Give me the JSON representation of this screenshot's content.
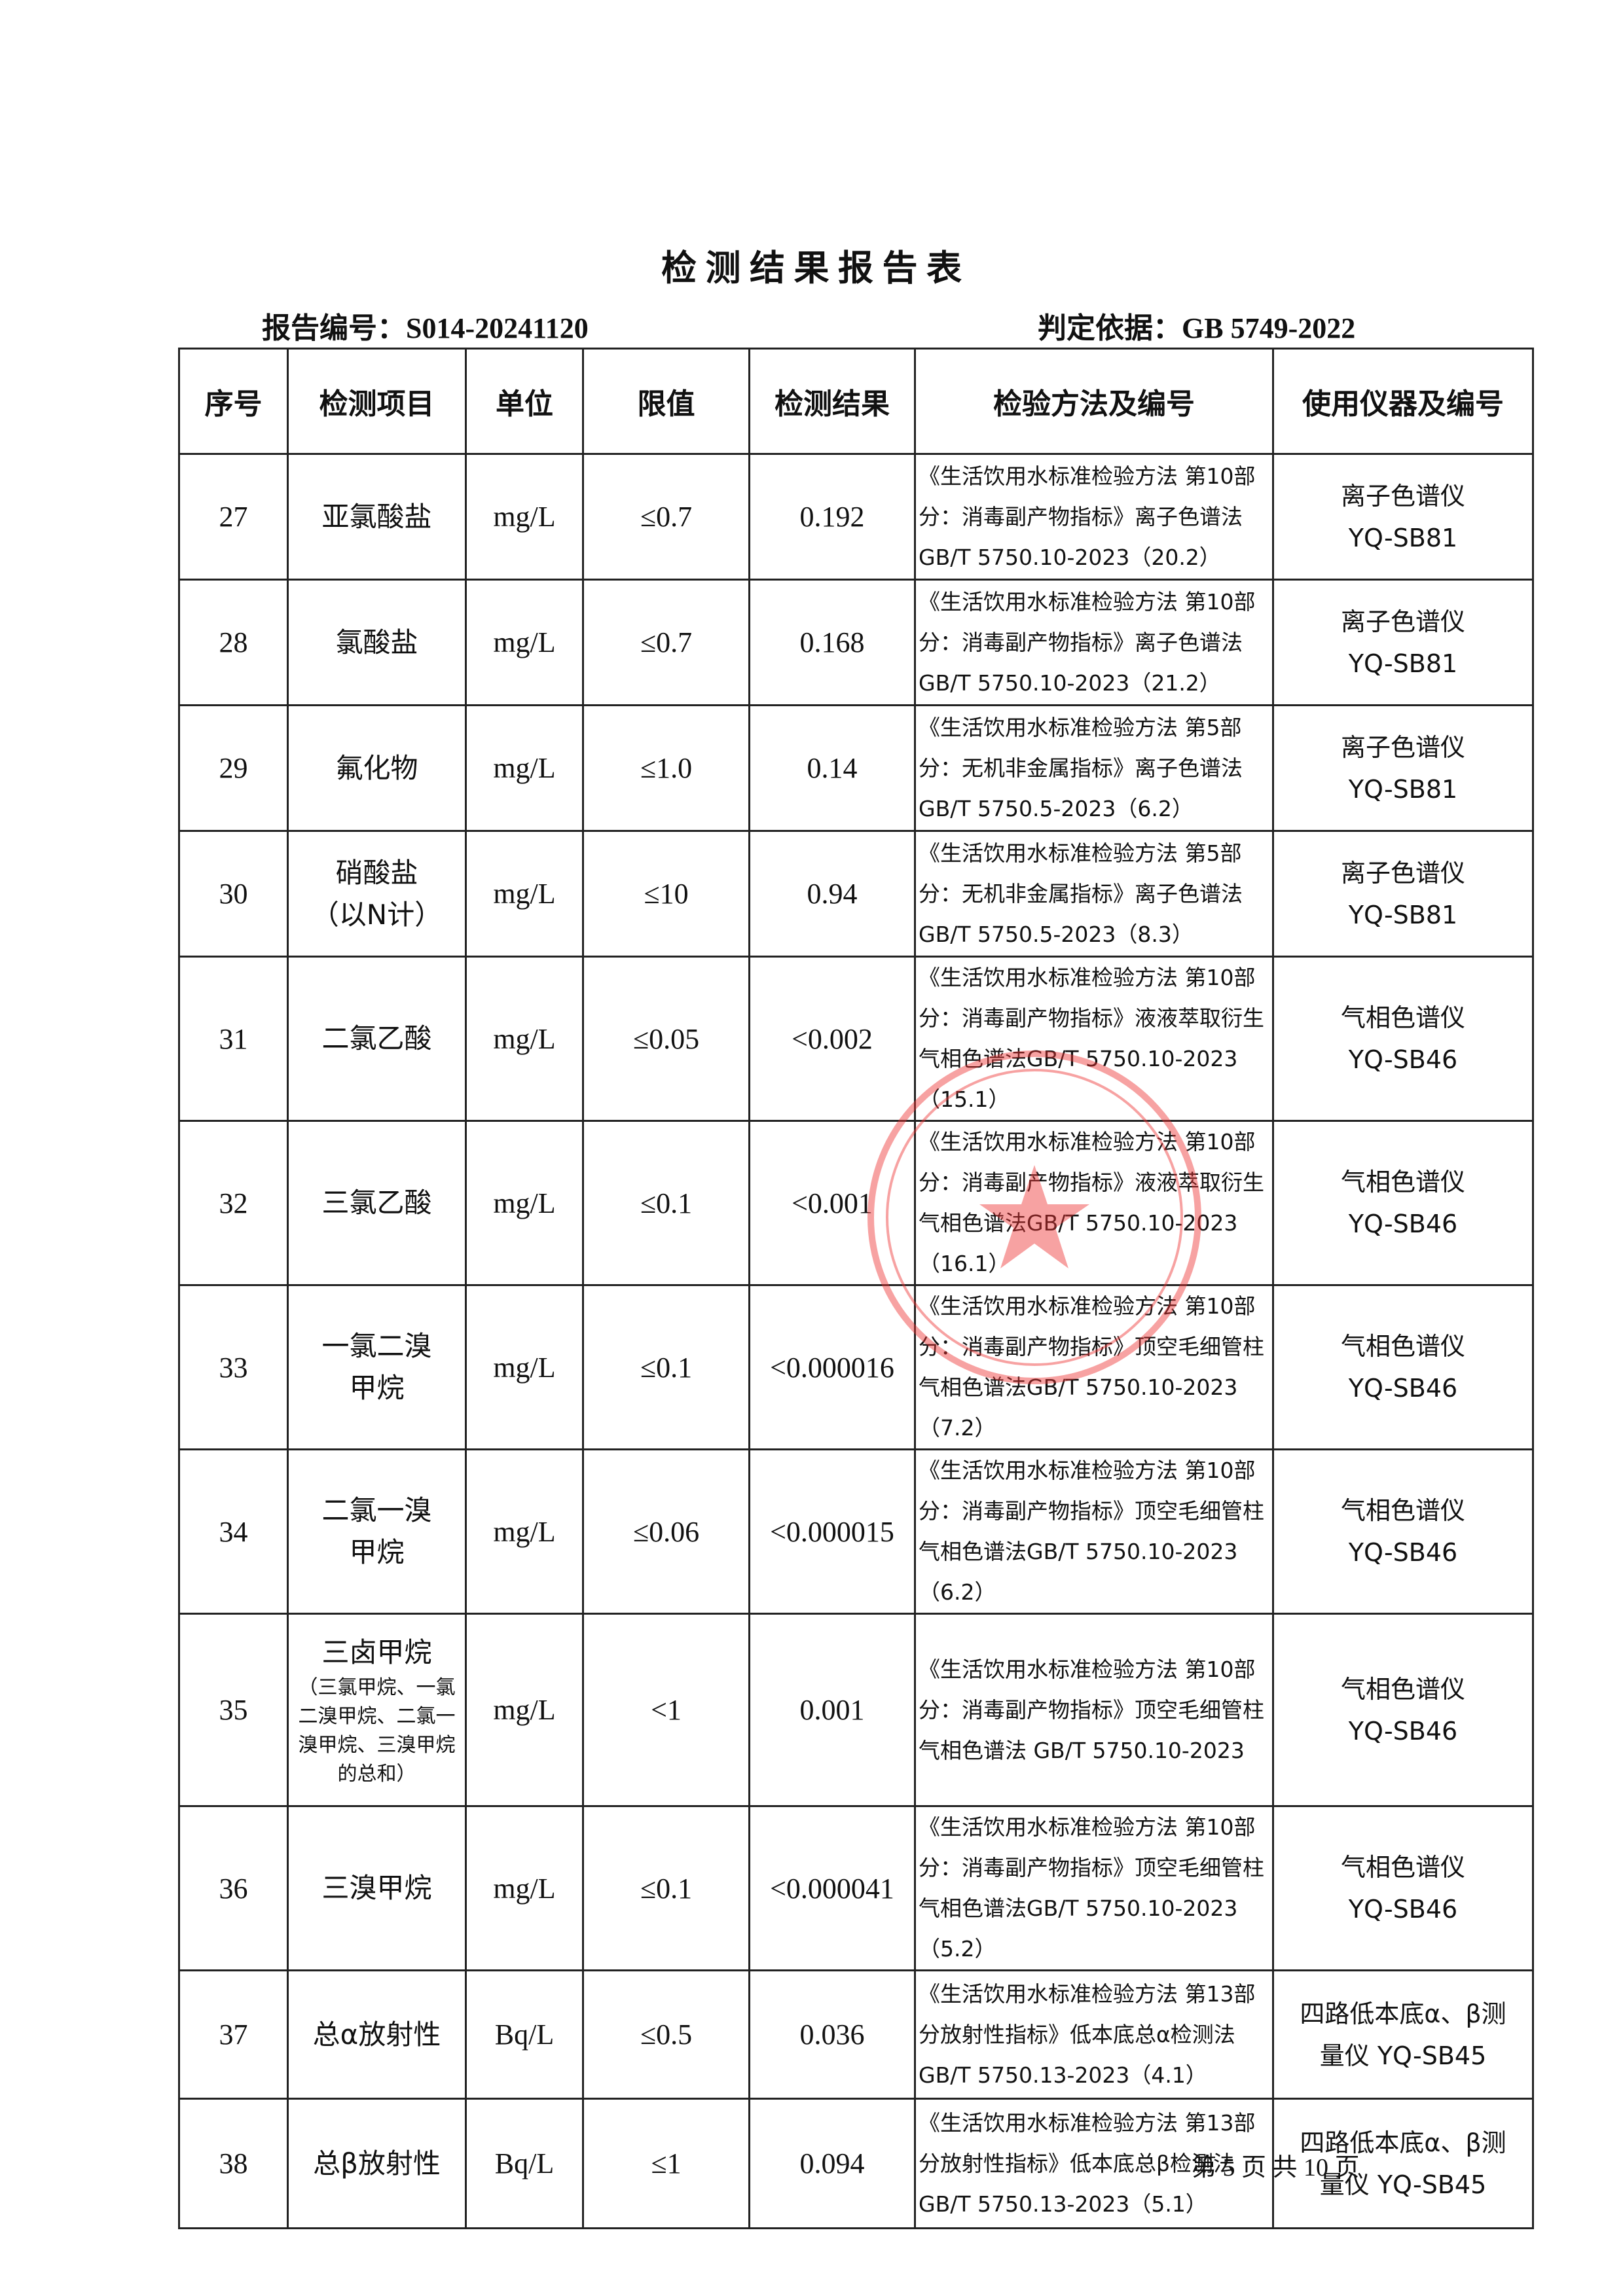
{
  "header": {
    "title": "检 测 结 果 报 告 表",
    "report_no": "报告编号：S014-20241120",
    "basis": "判定依据：GB 5749-2022"
  },
  "table": {
    "columns": [
      "序号",
      "检测项目",
      "单位",
      "限值",
      "检测结果",
      "检验方法及编号",
      "使用仪器及编号"
    ],
    "rows": [
      {
        "no": "27",
        "item": [
          "亚氯酸盐"
        ],
        "unit": "mg/L",
        "limit": "≤0.7",
        "result": "0.192",
        "method": "《生活饮用水标准检验方法 第10部分：消毒副产物指标》离子色谱法 GB/T 5750.10-2023（20.2）",
        "instrument": [
          "离子色谱仪",
          "YQ-SB81"
        ]
      },
      {
        "no": "28",
        "item": [
          "氯酸盐"
        ],
        "unit": "mg/L",
        "limit": "≤0.7",
        "result": "0.168",
        "method": "《生活饮用水标准检验方法 第10部分：消毒副产物指标》离子色谱法 GB/T 5750.10-2023（21.2）",
        "instrument": [
          "离子色谱仪",
          "YQ-SB81"
        ]
      },
      {
        "no": "29",
        "item": [
          "氟化物"
        ],
        "unit": "mg/L",
        "limit": "≤1.0",
        "result": "0.14",
        "method": "《生活饮用水标准检验方法 第5部分：无机非金属指标》离子色谱法 GB/T 5750.5-2023（6.2）",
        "instrument": [
          "离子色谱仪",
          "YQ-SB81"
        ]
      },
      {
        "no": "30",
        "item": [
          "硝酸盐",
          "（以N计）"
        ],
        "unit": "mg/L",
        "limit": "≤10",
        "result": "0.94",
        "method": "《生活饮用水标准检验方法 第5部分：无机非金属指标》离子色谱法 GB/T 5750.5-2023（8.3）",
        "instrument": [
          "离子色谱仪",
          "YQ-SB81"
        ]
      },
      {
        "no": "31",
        "item": [
          "二氯乙酸"
        ],
        "unit": "mg/L",
        "limit": "≤0.05",
        "result": "<0.002",
        "method": "《生活饮用水标准检验方法 第10部分：消毒副产物指标》液液萃取衍生气相色谱法GB/T 5750.10-2023（15.1）",
        "instrument": [
          "气相色谱仪",
          "YQ-SB46"
        ]
      },
      {
        "no": "32",
        "item": [
          "三氯乙酸"
        ],
        "unit": "mg/L",
        "limit": "≤0.1",
        "result": "<0.001",
        "method": "《生活饮用水标准检验方法 第10部分：消毒副产物指标》液液萃取衍生气相色谱法GB/T 5750.10-2023（16.1）",
        "instrument": [
          "气相色谱仪",
          "YQ-SB46"
        ]
      },
      {
        "no": "33",
        "item": [
          "一氯二溴",
          "甲烷"
        ],
        "unit": "mg/L",
        "limit": "≤0.1",
        "result": "<0.000016",
        "method": "《生活饮用水标准检验方法 第10部分：消毒副产物指标》顶空毛细管柱气相色谱法GB/T 5750.10-2023（7.2）",
        "instrument": [
          "气相色谱仪",
          "YQ-SB46"
        ]
      },
      {
        "no": "34",
        "item": [
          "二氯一溴",
          "甲烷"
        ],
        "unit": "mg/L",
        "limit": "≤0.06",
        "result": "<0.000015",
        "method": "《生活饮用水标准检验方法 第10部分：消毒副产物指标》顶空毛细管柱气相色谱法GB/T 5750.10-2023（6.2）",
        "instrument": [
          "气相色谱仪",
          "YQ-SB46"
        ]
      },
      {
        "no": "35",
        "item": [
          "三卤甲烷"
        ],
        "item_note": "（三氯甲烷、一氯二溴甲烷、二氯一溴甲烷、三溴甲烷的总和）",
        "unit": "mg/L",
        "limit": "<1",
        "result": "0.001",
        "method": "《生活饮用水标准检验方法 第10部分：消毒副产物指标》顶空毛细管柱气相色谱法 GB/T 5750.10-2023",
        "instrument": [
          "气相色谱仪",
          "YQ-SB46"
        ]
      },
      {
        "no": "36",
        "item": [
          "三溴甲烷"
        ],
        "unit": "mg/L",
        "limit": "≤0.1",
        "result": "<0.000041",
        "method": "《生活饮用水标准检验方法 第10部分：消毒副产物指标》顶空毛细管柱气相色谱法GB/T 5750.10-2023（5.2）",
        "instrument": [
          "气相色谱仪",
          "YQ-SB46"
        ]
      },
      {
        "no": "37",
        "item": [
          "总α放射性"
        ],
        "unit": "Bq/L",
        "limit": "≤0.5",
        "result": "0.036",
        "method": "《生活饮用水标准检验方法 第13部分放射性指标》低本底总α检测法 GB/T 5750.13-2023（4.1）",
        "instrument": [
          "四路低本底α、β测",
          "量仪 YQ-SB45"
        ]
      },
      {
        "no": "38",
        "item": [
          "总β放射性"
        ],
        "unit": "Bq/L",
        "limit": "≤1",
        "result": "0.094",
        "method": "《生活饮用水标准检验方法 第13部分放射性指标》低本底总β检测法 GB/T 5750.13-2023（5.1）",
        "instrument": [
          "四路低本底α、β测",
          "量仪 YQ-SB45"
        ]
      }
    ]
  },
  "footer": {
    "page": "第 5 页 共 10 页"
  }
}
